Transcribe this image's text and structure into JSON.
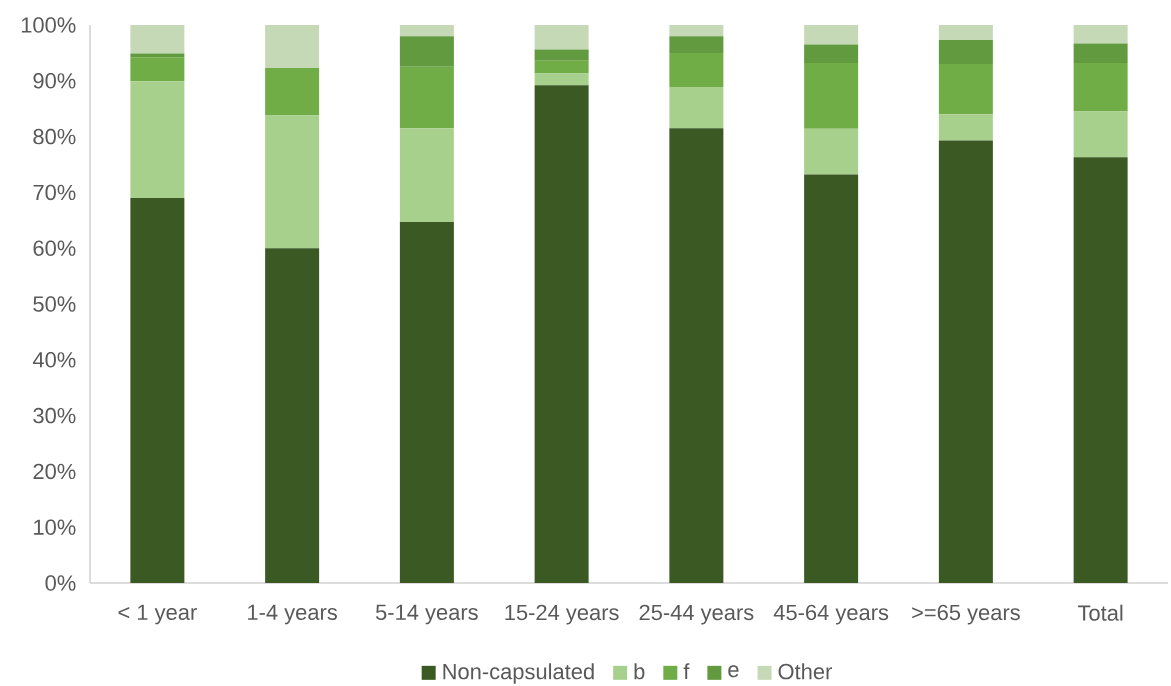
{
  "chart_data": {
    "type": "bar",
    "stacked": true,
    "categories": [
      "< 1 year",
      "1-4 years",
      "5-14 years",
      "15-24 years",
      "25-44 years",
      "45-64 years",
      ">=65 years",
      "Total"
    ],
    "series": [
      {
        "name": "Non-capsulated",
        "color": "#3b5a23",
        "values": [
          69.0,
          60.0,
          64.7,
          89.2,
          81.5,
          73.2,
          79.3,
          76.3
        ]
      },
      {
        "name": "b",
        "color": "#a8d08d",
        "values": [
          20.9,
          23.8,
          16.8,
          2.1,
          7.4,
          8.2,
          4.7,
          8.2
        ]
      },
      {
        "name": "f",
        "color": "#70ad47",
        "values": [
          4.3,
          8.5,
          11.0,
          2.3,
          6.1,
          11.8,
          9.0,
          8.7
        ]
      },
      {
        "name": "e",
        "color": "#619a3f",
        "values": [
          0.7,
          0,
          5.5,
          2.0,
          3.0,
          3.3,
          4.3,
          3.5
        ]
      },
      {
        "name": "Other",
        "color": "#c5d9b7",
        "values": [
          5.1,
          7.7,
          2.0,
          4.4,
          2.0,
          3.5,
          2.7,
          3.3
        ]
      }
    ],
    "ylim": [
      0,
      100
    ],
    "yticks": [
      {
        "value": 0,
        "label": "0%"
      },
      {
        "value": 10,
        "label": "10%"
      },
      {
        "value": 20,
        "label": "20%"
      },
      {
        "value": 30,
        "label": "30%"
      },
      {
        "value": 40,
        "label": "40%"
      },
      {
        "value": 50,
        "label": "50%"
      },
      {
        "value": 60,
        "label": "60%"
      },
      {
        "value": 70,
        "label": "70%"
      },
      {
        "value": 80,
        "label": "80%"
      },
      {
        "value": 90,
        "label": "90%"
      },
      {
        "value": 100,
        "label": "100%"
      }
    ],
    "legend": "bottom"
  }
}
